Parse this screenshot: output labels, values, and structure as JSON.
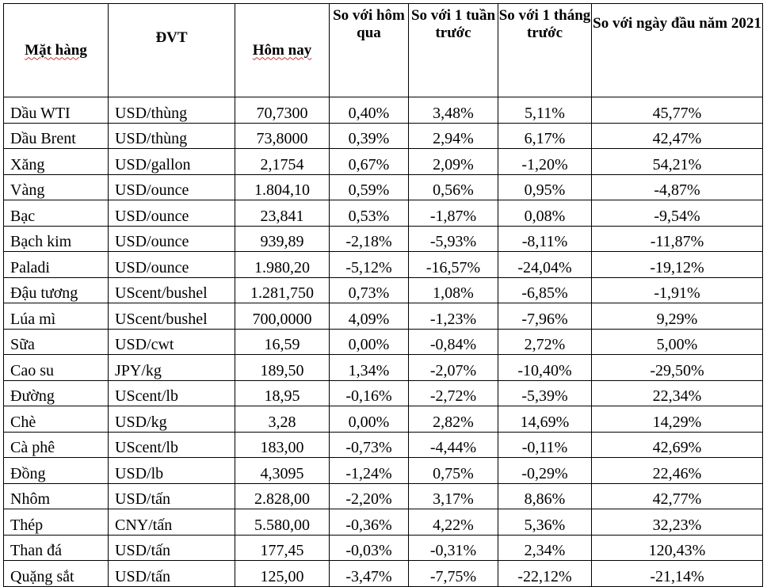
{
  "table": {
    "headers": {
      "item": "Mặt hàng",
      "unit": "ĐVT",
      "today": "Hôm nay",
      "vs_yesterday": "So với hôm qua",
      "vs_week": "So với 1 tuần trước",
      "vs_month": "So với 1 tháng trước",
      "vs_year_start": "So với ngày đầu năm 2021"
    },
    "rows": [
      {
        "item": "Dầu WTI",
        "unit": "USD/thùng",
        "today": "70,7300",
        "d1": "0,40%",
        "w1": "3,48%",
        "m1": "5,11%",
        "ytd": "45,77%"
      },
      {
        "item": "Dầu Brent",
        "unit": "USD/thùng",
        "today": "73,8000",
        "d1": "0,39%",
        "w1": "2,94%",
        "m1": "6,17%",
        "ytd": "42,47%"
      },
      {
        "item": "Xăng",
        "unit": "USD/gallon",
        "today": "2,1754",
        "d1": "0,67%",
        "w1": "2,09%",
        "m1": "-1,20%",
        "ytd": "54,21%"
      },
      {
        "item": "Vàng",
        "unit": "USD/ounce",
        "today": "1.804,10",
        "d1": "0,59%",
        "w1": "0,56%",
        "m1": "0,95%",
        "ytd": "-4,87%"
      },
      {
        "item": "Bạc",
        "unit": "USD/ounce",
        "today": "23,841",
        "d1": "0,53%",
        "w1": "-1,87%",
        "m1": "0,08%",
        "ytd": "-9,54%"
      },
      {
        "item": "Bạch kim",
        "unit": "USD/ounce",
        "today": "939,89",
        "d1": "-2,18%",
        "w1": "-5,93%",
        "m1": "-8,11%",
        "ytd": "-11,87%"
      },
      {
        "item": "Paladi",
        "unit": "USD/ounce",
        "today": "1.980,20",
        "d1": "-5,12%",
        "w1": "-16,57%",
        "m1": "-24,04%",
        "ytd": "-19,12%"
      },
      {
        "item": "Đậu tương",
        "unit": "UScent/bushel",
        "today": "1.281,750",
        "d1": "0,73%",
        "w1": "1,08%",
        "m1": "-6,85%",
        "ytd": "-1,91%"
      },
      {
        "item": "Lúa mì",
        "unit": "UScent/bushel",
        "today": "700,0000",
        "d1": "4,09%",
        "w1": "-1,23%",
        "m1": "-7,96%",
        "ytd": "9,29%"
      },
      {
        "item": "Sữa",
        "unit": "USD/cwt",
        "today": "16,59",
        "d1": "0,00%",
        "w1": "-0,84%",
        "m1": "2,72%",
        "ytd": "5,00%"
      },
      {
        "item": "Cao su",
        "unit": "JPY/kg",
        "today": "189,50",
        "d1": "1,34%",
        "w1": "-2,07%",
        "m1": "-10,40%",
        "ytd": "-29,50%"
      },
      {
        "item": "Đường",
        "unit": "UScent/lb",
        "today": "18,95",
        "d1": "-0,16%",
        "w1": "-2,72%",
        "m1": "-5,39%",
        "ytd": "22,34%"
      },
      {
        "item": "Chè",
        "unit": "USD/kg",
        "today": "3,28",
        "d1": "0,00%",
        "w1": "2,82%",
        "m1": "14,69%",
        "ytd": "14,29%"
      },
      {
        "item": "Cà phê",
        "unit": "UScent/lb",
        "today": "183,00",
        "d1": "-0,73%",
        "w1": "-4,44%",
        "m1": "-0,11%",
        "ytd": "42,69%"
      },
      {
        "item": "Đồng",
        "unit": "USD/lb",
        "today": "4,3095",
        "d1": "-1,24%",
        "w1": "0,75%",
        "m1": "-0,29%",
        "ytd": "22,46%"
      },
      {
        "item": "Nhôm",
        "unit": "USD/tấn",
        "today": "2.828,00",
        "d1": "-2,20%",
        "w1": "3,17%",
        "m1": "8,86%",
        "ytd": "42,77%"
      },
      {
        "item": "Thép",
        "unit": "CNY/tấn",
        "today": "5.580,00",
        "d1": "-0,36%",
        "w1": "4,22%",
        "m1": "5,36%",
        "ytd": "32,23%"
      },
      {
        "item": "Than đá",
        "unit": "USD/tấn",
        "today": "177,45",
        "d1": "-0,03%",
        "w1": "-0,31%",
        "m1": "2,34%",
        "ytd": "120,43%"
      },
      {
        "item": "Quặng sắt",
        "unit": "USD/tấn",
        "today": "125,00",
        "d1": "-3,47%",
        "w1": "-7,75%",
        "m1": "-22,12%",
        "ytd": "-21,14%"
      }
    ]
  }
}
